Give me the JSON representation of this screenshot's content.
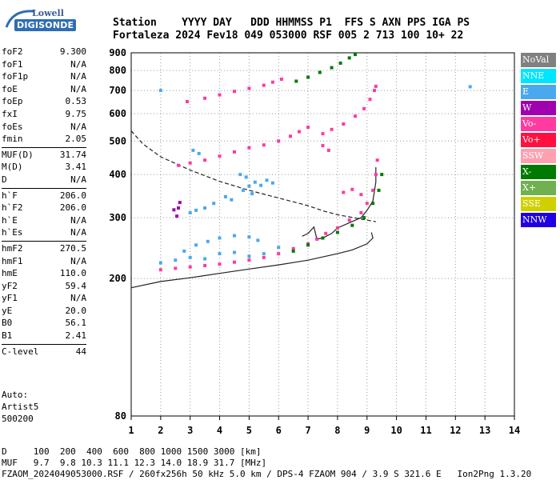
{
  "logo": {
    "top": "Lowell",
    "bottom": "DIGISONDE"
  },
  "header": {
    "row1": "Station    YYYY DAY   DDD HHMMSS P1  FFS S AXN PPS IGA PS",
    "row2": "Fortaleza 2024 Fev18 049 053000 RSF 005 2 713 100 10+ 22"
  },
  "params": [
    {
      "label": "foF2",
      "value": "9.300"
    },
    {
      "label": "foF1",
      "value": "N/A"
    },
    {
      "label": "foF1p",
      "value": "N/A"
    },
    {
      "label": "foE",
      "value": "N/A"
    },
    {
      "label": "foEp",
      "value": "0.53"
    },
    {
      "label": "fxI",
      "value": "9.75"
    },
    {
      "label": "foEs",
      "value": "N/A"
    },
    {
      "label": "fmin",
      "value": "2.05"
    },
    {
      "sep": true
    },
    {
      "label": "MUF(D)",
      "value": "31.74"
    },
    {
      "label": "M(D)",
      "value": "3.41"
    },
    {
      "label": "D",
      "value": "N/A"
    },
    {
      "sep": true
    },
    {
      "label": "h`F",
      "value": "206.0"
    },
    {
      "label": "h`F2",
      "value": "206.0"
    },
    {
      "label": "h`E",
      "value": "N/A"
    },
    {
      "label": "h`Es",
      "value": "N/A"
    },
    {
      "sep": true
    },
    {
      "label": "hmF2",
      "value": "270.5"
    },
    {
      "label": "hmF1",
      "value": "N/A"
    },
    {
      "label": "hmE",
      "value": "110.0"
    },
    {
      "label": "yF2",
      "value": "59.4"
    },
    {
      "label": "yF1",
      "value": "N/A"
    },
    {
      "label": "yE",
      "value": "20.0"
    },
    {
      "label": "B0",
      "value": "56.1"
    },
    {
      "label": "B1",
      "value": "2.41"
    },
    {
      "sep": true
    },
    {
      "label": "C-level",
      "value": "44"
    }
  ],
  "auto": {
    "line1": "Auto:",
    "line2": "Artist5",
    "line3": "500200"
  },
  "footer": {
    "line1": "D     100  200  400  600  800 1000 1500 3000 [km]",
    "line2": "MUF   9.7  9.8 10.3 11.1 12.3 14.0 18.9 31.7 [MHz]",
    "line3": "FZAOM_2024049053000.RSF / 260fx256h 50 kHz 5.0 km / DPS-4 FZAOM 904 / 3.9 S 321.6 E   Ion2Png 1.3.20"
  },
  "legend": [
    {
      "label": "NoVal",
      "color": "#808080"
    },
    {
      "label": "NNE",
      "color": "#00e5ff"
    },
    {
      "label": "E",
      "color": "#4aa8ee"
    },
    {
      "label": "W",
      "color": "#a000b0"
    },
    {
      "label": "Vo-",
      "color": "#ff3aa0"
    },
    {
      "label": "Vo+",
      "color": "#ff1040"
    },
    {
      "label": "SSW",
      "color": "#ffa0b0"
    },
    {
      "label": "X-",
      "color": "#007a00"
    },
    {
      "label": "X+",
      "color": "#70b050"
    },
    {
      "label": "SSE",
      "color": "#d0d000"
    },
    {
      "label": "NNW",
      "color": "#2000e0"
    }
  ],
  "chart_data": {
    "type": "scatter",
    "xlim": [
      1,
      14
    ],
    "ylim": [
      80,
      900
    ],
    "yscale": "log",
    "xticks": [
      "1",
      "2",
      "3",
      "4",
      "5",
      "6",
      "7",
      "8",
      "9",
      "10",
      "11",
      "12",
      "13",
      "14"
    ],
    "yticks": [
      {
        "v": 200,
        "label": "200"
      },
      {
        "v": 300,
        "label": "300"
      },
      {
        "v": 400,
        "label": "400"
      },
      {
        "v": 500,
        "label": "500"
      },
      {
        "v": 600,
        "label": "600"
      },
      {
        "v": 700,
        "label": "700"
      },
      {
        "v": 800,
        "label": "800"
      },
      {
        "v": 900,
        "label": "900"
      },
      {
        "v": 80,
        "label": "80"
      }
    ],
    "grid": "dotted",
    "series": [
      {
        "color": "#ff3aa0",
        "points": [
          [
            2.0,
            212
          ],
          [
            2.5,
            214
          ],
          [
            3.0,
            216
          ],
          [
            3.5,
            218
          ],
          [
            4.0,
            220
          ],
          [
            4.5,
            223
          ],
          [
            5.0,
            226
          ],
          [
            5.5,
            230
          ],
          [
            6.0,
            236
          ],
          [
            6.5,
            244
          ],
          [
            7.0,
            252
          ],
          [
            7.3,
            260
          ],
          [
            7.6,
            270
          ],
          [
            8.0,
            280
          ],
          [
            8.4,
            295
          ],
          [
            8.8,
            310
          ],
          [
            9.0,
            330
          ],
          [
            9.2,
            360
          ],
          [
            9.3,
            400
          ],
          [
            9.35,
            440
          ]
        ]
      },
      {
        "color": "#007a00",
        "points": [
          [
            6.5,
            240
          ],
          [
            7.0,
            250
          ],
          [
            7.5,
            262
          ],
          [
            8.0,
            272
          ],
          [
            8.5,
            285
          ],
          [
            8.9,
            300
          ],
          [
            9.2,
            330
          ],
          [
            9.4,
            360
          ],
          [
            9.5,
            400
          ]
        ]
      },
      {
        "color": "#ff3aa0",
        "points": [
          [
            2.6,
            425
          ],
          [
            3.0,
            432
          ],
          [
            3.5,
            440
          ],
          [
            4.0,
            452
          ],
          [
            4.5,
            465
          ],
          [
            5.0,
            478
          ],
          [
            5.5,
            487
          ],
          [
            6.0,
            500
          ],
          [
            6.4,
            516
          ],
          [
            6.7,
            532
          ],
          [
            7.0,
            548
          ]
        ]
      },
      {
        "color": "#ff3aa0",
        "points": [
          [
            7.5,
            525
          ],
          [
            7.8,
            540
          ],
          [
            8.2,
            560
          ],
          [
            8.6,
            590
          ],
          [
            8.9,
            620
          ],
          [
            9.1,
            660
          ],
          [
            9.25,
            700
          ],
          [
            9.3,
            720
          ]
        ]
      },
      {
        "color": "#ff3aa0",
        "points": [
          [
            2.9,
            650
          ],
          [
            3.5,
            665
          ],
          [
            4.0,
            680
          ],
          [
            4.5,
            696
          ],
          [
            5.0,
            710
          ],
          [
            5.5,
            725
          ],
          [
            5.8,
            740
          ],
          [
            6.1,
            755
          ]
        ]
      },
      {
        "color": "#007a00",
        "points": [
          [
            6.6,
            745
          ],
          [
            7.0,
            765
          ],
          [
            7.4,
            790
          ],
          [
            7.8,
            815
          ],
          [
            8.1,
            840
          ],
          [
            8.4,
            870
          ],
          [
            8.6,
            890
          ]
        ]
      },
      {
        "color": "#4aa8ee",
        "points": [
          [
            2.0,
            222
          ],
          [
            2.5,
            226
          ],
          [
            3.0,
            230
          ],
          [
            3.5,
            228
          ],
          [
            4.0,
            236
          ],
          [
            4.5,
            238
          ],
          [
            5.0,
            232
          ],
          [
            5.5,
            236
          ],
          [
            6.0,
            246
          ]
        ]
      },
      {
        "color": "#4aa8ee",
        "points": [
          [
            2.8,
            240
          ],
          [
            3.2,
            250
          ],
          [
            3.6,
            256
          ],
          [
            4.0,
            262
          ],
          [
            4.5,
            266
          ],
          [
            5.0,
            264
          ],
          [
            5.3,
            258
          ]
        ]
      },
      {
        "color": "#4aa8ee",
        "points": [
          [
            4.8,
            360
          ],
          [
            5.0,
            370
          ],
          [
            5.2,
            380
          ],
          [
            5.4,
            372
          ],
          [
            5.6,
            385
          ],
          [
            5.8,
            378
          ],
          [
            4.7,
            400
          ],
          [
            4.9,
            393
          ],
          [
            5.1,
            352
          ]
        ]
      },
      {
        "color": "#4aa8ee",
        "points": [
          [
            3.0,
            310
          ],
          [
            3.2,
            315
          ],
          [
            3.5,
            320
          ],
          [
            3.8,
            330
          ],
          [
            4.2,
            345
          ],
          [
            4.4,
            338
          ],
          [
            3.1,
            470
          ],
          [
            3.3,
            460
          ],
          [
            2.0,
            700
          ]
        ]
      },
      {
        "color": "#a000b0",
        "points": [
          [
            2.55,
            303
          ],
          [
            2.6,
            320
          ],
          [
            2.65,
            332
          ],
          [
            2.45,
            316
          ]
        ]
      },
      {
        "color": "#4aa8ee",
        "points": [
          [
            12.5,
            718
          ]
        ]
      },
      {
        "color": "#ff3aa0",
        "points": [
          [
            8.2,
            355
          ],
          [
            8.5,
            362
          ],
          [
            8.8,
            350
          ],
          [
            7.5,
            485
          ],
          [
            7.7,
            470
          ]
        ]
      }
    ],
    "lines": [
      {
        "style": "solid",
        "points": [
          [
            1.0,
            188
          ],
          [
            2.0,
            196
          ],
          [
            3.0,
            201
          ],
          [
            4.0,
            207
          ],
          [
            5.0,
            213
          ],
          [
            6.0,
            219
          ],
          [
            7.0,
            226
          ],
          [
            8.0,
            236
          ],
          [
            8.5,
            242
          ],
          [
            9.0,
            252
          ],
          [
            9.2,
            262
          ],
          [
            9.15,
            272
          ]
        ]
      },
      {
        "style": "dashed",
        "points": [
          [
            1.0,
            535
          ],
          [
            1.4,
            490
          ],
          [
            2.0,
            450
          ],
          [
            3.0,
            412
          ],
          [
            4.0,
            382
          ],
          [
            5.0,
            360
          ],
          [
            6.0,
            342
          ],
          [
            7.0,
            325
          ],
          [
            7.5,
            314
          ],
          [
            8.0,
            306
          ],
          [
            9.0,
            295
          ],
          [
            9.3,
            292
          ]
        ]
      },
      {
        "style": "solid",
        "points": [
          [
            6.8,
            265
          ],
          [
            7.0,
            270
          ],
          [
            7.2,
            282
          ],
          [
            7.3,
            260
          ],
          [
            7.5,
            262
          ],
          [
            7.8,
            270
          ],
          [
            8.0,
            280
          ],
          [
            8.4,
            290
          ],
          [
            8.8,
            300
          ],
          [
            9.0,
            315
          ],
          [
            9.2,
            335
          ],
          [
            9.3,
            380
          ],
          [
            9.3,
            420
          ]
        ]
      }
    ]
  }
}
